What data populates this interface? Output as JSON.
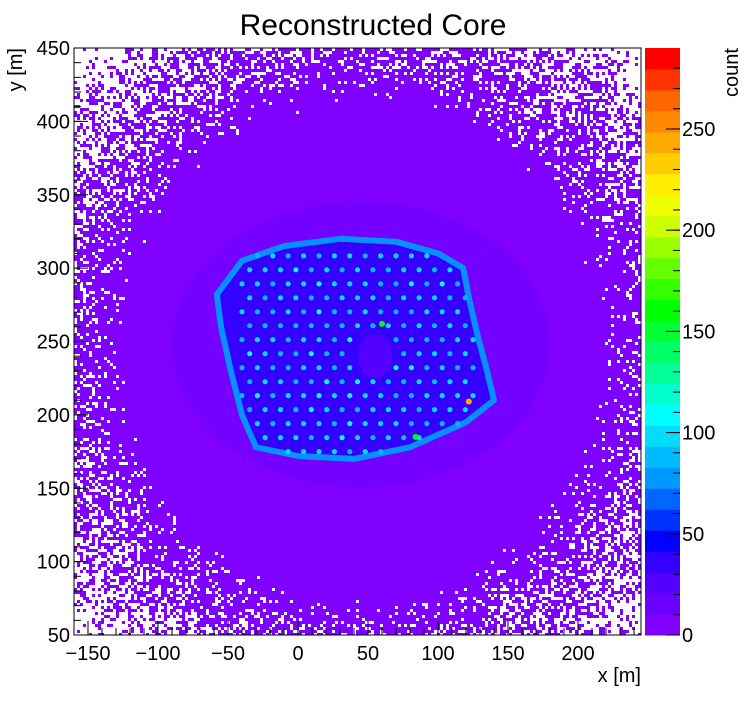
{
  "chart_data": {
    "type": "heatmap",
    "title": "Reconstructed Core",
    "xlabel": "x [m]",
    "ylabel": "y [m]",
    "zlabel": "count",
    "xlim": [
      -160,
      245
    ],
    "ylim": [
      50,
      450
    ],
    "zlim": [
      0,
      290
    ],
    "x_ticks": [
      -150,
      -100,
      -50,
      0,
      50,
      100,
      150,
      200
    ],
    "y_ticks": [
      50,
      100,
      150,
      200,
      250,
      300,
      350,
      400,
      450
    ],
    "z_ticks": [
      0,
      50,
      100,
      150,
      200,
      250
    ],
    "palette": [
      "#8000ff",
      "#6a00ff",
      "#5500ff",
      "#3300ff",
      "#0000ff",
      "#0033ff",
      "#0066ff",
      "#0099ff",
      "#00bbff",
      "#00ddff",
      "#00ffff",
      "#00ffcc",
      "#00ff99",
      "#00ff66",
      "#00ff33",
      "#00ff00",
      "#33ff00",
      "#66ff00",
      "#99ff00",
      "#ccff00",
      "#eeff00",
      "#ffee00",
      "#ffcc00",
      "#ffaa00",
      "#ff8800",
      "#ff6600",
      "#ff3300",
      "#ff0000"
    ],
    "background_level": 8,
    "core_region_polygon": [
      [
        -58,
        282
      ],
      [
        -40,
        305
      ],
      [
        -10,
        315
      ],
      [
        30,
        320
      ],
      [
        70,
        318
      ],
      [
        100,
        310
      ],
      [
        118,
        300
      ],
      [
        122,
        280
      ],
      [
        128,
        255
      ],
      [
        135,
        230
      ],
      [
        140,
        210
      ],
      [
        120,
        195
      ],
      [
        80,
        178
      ],
      [
        40,
        170
      ],
      [
        0,
        172
      ],
      [
        -30,
        178
      ],
      [
        -40,
        200
      ],
      [
        -48,
        230
      ],
      [
        -55,
        260
      ]
    ],
    "core_level": 40,
    "detector_grid": {
      "x_range": [
        -40,
        125
      ],
      "y_range": [
        175,
        310
      ],
      "spacing": 11,
      "level": 95
    },
    "hot_spots": [
      {
        "x": 122,
        "y": 209,
        "level": 245
      },
      {
        "x": 84,
        "y": 185,
        "level": 160
      },
      {
        "x": 60,
        "y": 262,
        "level": 160
      }
    ],
    "hole": {
      "x": 55,
      "y": 240,
      "r": 12
    }
  }
}
